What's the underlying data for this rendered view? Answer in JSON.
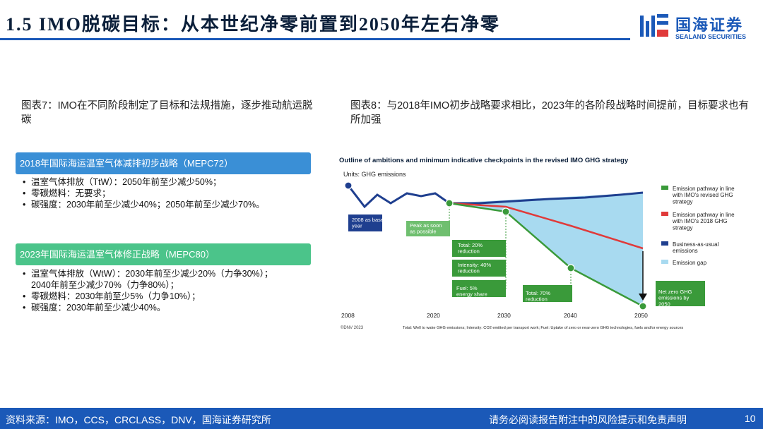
{
  "header": {
    "title": "1.5 IMO脱碳目标：从本世纪净零前置到2050年左右净零",
    "logo_cn": "国海证券",
    "logo_en": "SEALAND SECURITIES"
  },
  "colors": {
    "brand": "#1b59b8",
    "bar1": "#3a8fd6",
    "bar2": "#4bc48a",
    "green": "#3a9a3a",
    "red": "#e03a3a",
    "navy": "#1f3f8f",
    "gap": "#a8daf0"
  },
  "left": {
    "caption": "图表7：IMO在不同阶段制定了目标和法规措施，逐步推动航运脱碳",
    "section1": {
      "label": "2018年国际海运温室气体减排初步战略（MEPC72）",
      "items": [
        "温室气体排放（TtW）：2050年前至少减少50%；",
        "零碳燃料：无要求；",
        "碳强度：2030年前至少减少40%；2050年前至少减少70%。"
      ]
    },
    "section2": {
      "label": "2023年国际海运温室气体修正战略（MEPC80）",
      "items": [
        "温室气体排放（WtW）：2030年前至少减少20%（力争30%）；",
        "2040年前至少减少70%（力争80%）；",
        "零碳燃料：2030年前至少5%（力争10%）；",
        "碳强度：2030年前至少减少40%。"
      ]
    }
  },
  "right": {
    "caption": "图表8：与2018年IMO初步战略要求相比，2023年的各阶段战略时间提前，目标要求也有所加强"
  },
  "chart_data": {
    "type": "line",
    "title": "Outline of ambitions and minimum indicative checkpoints in the revised IMO GHG strategy",
    "units": "Units: GHG emissions",
    "x_ticks": [
      "2008",
      "2020",
      "2030",
      "2040",
      "2050"
    ],
    "legend": [
      {
        "label": "Emission pathway in line with IMO's revised GHG strategy",
        "color": "#3a9a3a"
      },
      {
        "label": "Emission pathway in line with IMO's 2018 GHG strategy",
        "color": "#e03a3a"
      },
      {
        "label": "Business-as-usual emissions",
        "color": "#1f3f8f"
      },
      {
        "label": "Emission gap",
        "color": "#a8daf0"
      }
    ],
    "legend_placement": "right",
    "annotations": {
      "base": "2008 as base year",
      "peak": "Peak as soon as possible",
      "total20": "Total: 20% reduction",
      "intensity": "Intensity: 40% reduction",
      "fuel": "Fuel: 5% energy share",
      "total70": "Total: 70% reduction",
      "netzero": "Net zero GHG emissions by 2050"
    },
    "source": "©DNV 2023",
    "footnote": "Total: Well to wake GHG emissions; Intensity: CO2 emitted per transport work; Fuel: Uptake of zero or near-zero GHG technologies, fuels and/or energy sources"
  },
  "footer": {
    "source": "资料来源：IMO，CCS，CRCLASS，DNV，国海证券研究所",
    "disclaimer": "请务必阅读报告附注中的风险提示和免责声明",
    "page": "10"
  }
}
